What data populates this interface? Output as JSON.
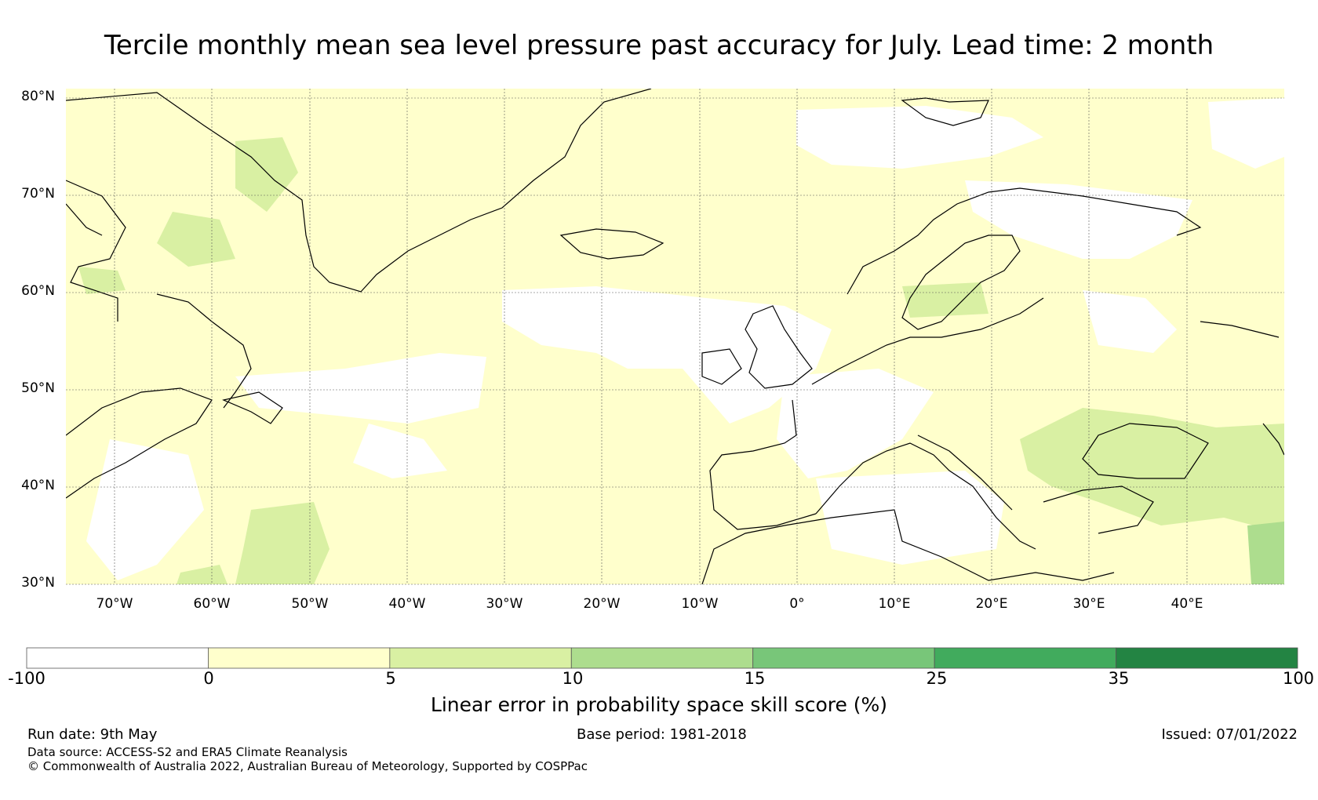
{
  "title": "Tercile monthly mean sea level pressure past accuracy for July. Lead time: 2 month",
  "map": {
    "lat_labels": [
      "80°N",
      "70°N",
      "60°N",
      "50°N",
      "40°N",
      "30°N"
    ],
    "lon_labels": [
      "70°W",
      "60°W",
      "50°W",
      "40°W",
      "30°W",
      "20°W",
      "10°W",
      "0°",
      "10°E",
      "20°E",
      "30°E",
      "40°E"
    ],
    "lat_range": [
      30,
      81
    ],
    "lon_range": [
      -75,
      50
    ]
  },
  "colorbar": {
    "ticks": [
      "-100",
      "0",
      "5",
      "10",
      "15",
      "25",
      "35",
      "100"
    ],
    "colors": [
      "#ffffff",
      "#ffffcc",
      "#d9f0a3",
      "#addd8e",
      "#78c679",
      "#41ab5d",
      "#238443"
    ],
    "label": "Linear error in probability space skill score (%)"
  },
  "footer": {
    "run_date": "Run date: 9th May",
    "base_period": "Base period: 1981-2018",
    "issued": "Issued: 07/01/2022",
    "data_source": "Data source: ACCESS-S2 and ERA5 Climate Reanalysis",
    "copyright": "© Commonwealth of Australia 2022, Australian Bureau of Meteorology, Supported by COSPPac"
  }
}
